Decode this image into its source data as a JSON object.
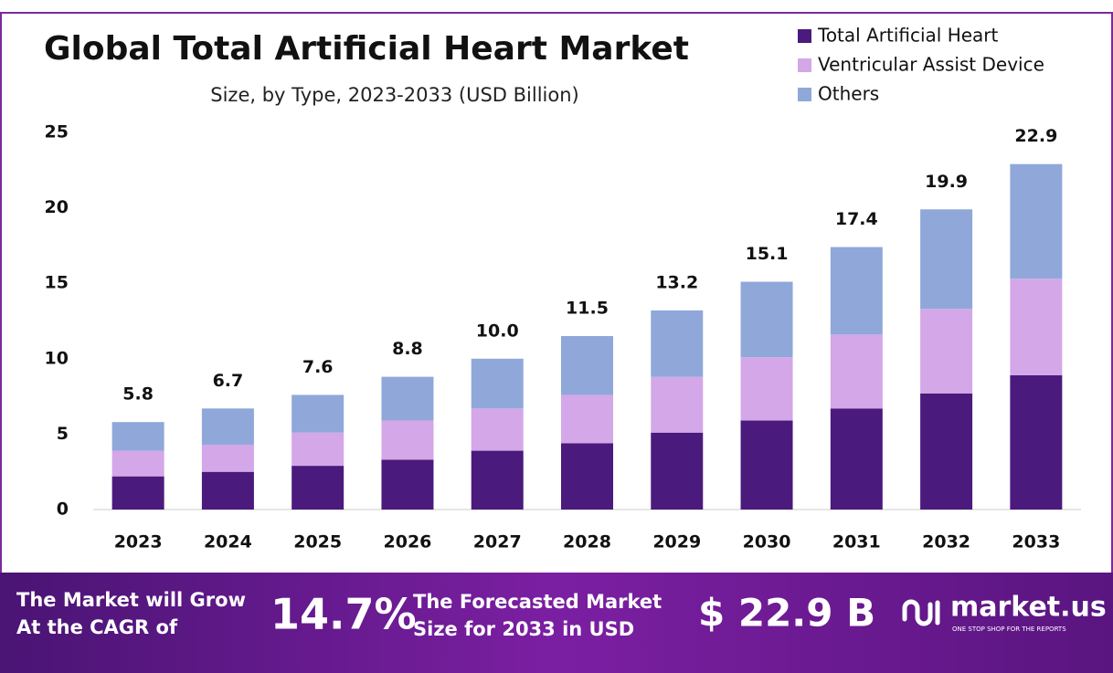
{
  "chart_data": {
    "type": "stacked-bar",
    "title": "Global Total Artificial Heart Market",
    "subtitle": "Size, by Type, 2023-2033 (USD Billion)",
    "categories": [
      "2023",
      "2024",
      "2025",
      "2026",
      "2027",
      "2028",
      "2029",
      "2030",
      "2031",
      "2032",
      "2033"
    ],
    "series": [
      {
        "name": "Total Artificial Heart",
        "color": "#4b1a7d",
        "values": [
          2.2,
          2.5,
          2.9,
          3.3,
          3.9,
          4.4,
          5.1,
          5.9,
          6.7,
          7.7,
          8.9
        ]
      },
      {
        "name": "Ventricular Assist Device",
        "color": "#d4a7e8",
        "values": [
          1.7,
          1.8,
          2.2,
          2.6,
          2.8,
          3.2,
          3.7,
          4.2,
          4.9,
          5.6,
          6.4
        ]
      },
      {
        "name": "Others",
        "color": "#8fa8d9",
        "values": [
          1.9,
          2.4,
          2.5,
          2.9,
          3.3,
          3.9,
          4.4,
          5.0,
          5.8,
          6.6,
          7.6
        ]
      }
    ],
    "totals": [
      5.8,
      6.7,
      7.6,
      8.8,
      10,
      11.5,
      13.2,
      15.1,
      17.4,
      19.9,
      22.9
    ],
    "total_labels": [
      "5.8",
      "6.7",
      "7.6",
      "8.8",
      "10.0",
      "11.5",
      "13.2",
      "15.1",
      "17.4",
      "19.9",
      "22.9"
    ],
    "ylim": [
      0,
      25
    ],
    "yticks": [
      0,
      5,
      10,
      15,
      20,
      25
    ],
    "grid": false,
    "legend": "top-right"
  },
  "footer": {
    "cagr_text": [
      "The Market will Grow",
      "At the CAGR of"
    ],
    "cagr_value": "14.7%",
    "forecast_text": [
      "The Forecasted Market",
      "Size for 2033 in USD"
    ],
    "forecast_value": "$ 22.9 B",
    "brand": "market.us",
    "tagline": "ONE STOP SHOP FOR THE REPORTS"
  }
}
